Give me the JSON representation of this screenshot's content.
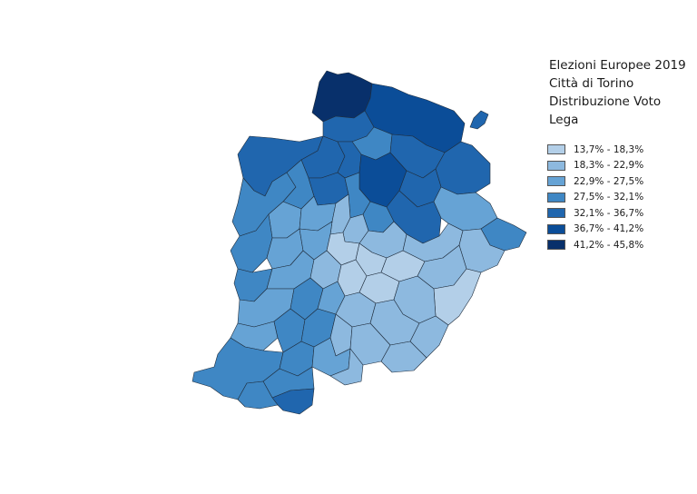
{
  "title": {
    "line1": "Elezioni Europee 2019",
    "line2": "Città di Torino",
    "line3": "Distribuzione Voto",
    "line4": "Lega"
  },
  "legend": [
    {
      "label": "13,7% - 18,3%",
      "color": "#b3cfe8"
    },
    {
      "label": "18,3% - 22,9%",
      "color": "#8db9df"
    },
    {
      "label": "22,9% - 27,5%",
      "color": "#66a3d5"
    },
    {
      "label": "27,5% - 32,1%",
      "color": "#3f87c4"
    },
    {
      "label": "32,1% - 36,7%",
      "color": "#2066ae"
    },
    {
      "label": "36,7% - 41,2%",
      "color": "#0b4d98"
    },
    {
      "label": "41,2% - 45,8%",
      "color": "#08306b"
    }
  ]
}
